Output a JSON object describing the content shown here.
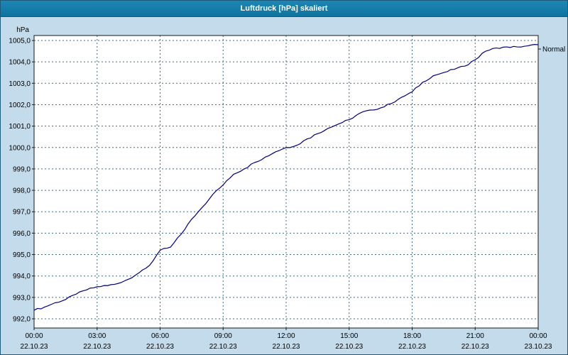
{
  "window": {
    "title": "Luftdruck [hPa] skaliert"
  },
  "colors": {
    "titlebar": "#1279a7",
    "titlebar_text": "#ffffff",
    "panel_bg": "#c3dbeb",
    "plot_bg": "#ffffff",
    "grid": "#3d6c7e",
    "axis": "#1a1a1a",
    "line": "#00007f",
    "label": "#000000",
    "window_border": "#1b5a7a"
  },
  "chart_data": {
    "type": "line",
    "title": "Luftdruck [hPa] skaliert",
    "y_unit_label": "hPa",
    "right_label": "Normal",
    "right_label_value": 1004.6,
    "ylim": [
      991.6,
      1005.25
    ],
    "grid": "dashed",
    "yticks": [
      992,
      993,
      994,
      995,
      996,
      997,
      998,
      999,
      1000,
      1001,
      1002,
      1003,
      1004,
      1005
    ],
    "ytick_labels": [
      "992,0",
      "993,0",
      "994,0",
      "995,0",
      "996,0",
      "997,0",
      "998,0",
      "999,0",
      "1000,0",
      "1001,0",
      "1002,0",
      "1003,0",
      "1004,0",
      "1005,0"
    ],
    "xticks_hours": [
      0,
      3,
      6,
      9,
      12,
      15,
      18,
      21,
      24
    ],
    "xtick_time_labels": [
      "00:00",
      "03:00",
      "06:00",
      "09:00",
      "12:00",
      "15:00",
      "18:00",
      "21:00",
      "00:00"
    ],
    "xtick_date_labels": [
      "22.10.23",
      "22.10.23",
      "22.10.23",
      "22.10.23",
      "22.10.23",
      "22.10.23",
      "22.10.23",
      "22.10.23",
      "23.10.23"
    ],
    "series": [
      {
        "name": "Luftdruck [hPa]",
        "color": "#00007f",
        "x": [
          0,
          0.5,
          1,
          1.5,
          2,
          2.5,
          3,
          3.5,
          4,
          4.5,
          5,
          5.5,
          6,
          6.5,
          7,
          7.5,
          8,
          8.5,
          9,
          9.5,
          10,
          10.5,
          11,
          11.5,
          12,
          12.5,
          13,
          13.5,
          14,
          14.5,
          15,
          15.5,
          16,
          16.5,
          17,
          17.5,
          18,
          18.5,
          19,
          19.5,
          20,
          20.5,
          21,
          21.5,
          22,
          22.5,
          23,
          23.5,
          24
        ],
        "y": [
          992.4,
          992.55,
          992.75,
          992.9,
          993.15,
          993.35,
          993.5,
          993.55,
          993.65,
          993.85,
          994.15,
          994.5,
          995.2,
          995.35,
          995.95,
          996.65,
          997.2,
          997.8,
          998.25,
          998.75,
          999.0,
          999.3,
          999.55,
          999.8,
          1000.0,
          1000.1,
          1000.4,
          1000.65,
          1000.9,
          1001.1,
          1001.3,
          1001.6,
          1001.75,
          1001.85,
          1002.05,
          1002.35,
          1002.6,
          1003.05,
          1003.35,
          1003.5,
          1003.65,
          1003.8,
          1004.1,
          1004.5,
          1004.65,
          1004.7,
          1004.7,
          1004.75,
          1004.8
        ]
      }
    ]
  }
}
